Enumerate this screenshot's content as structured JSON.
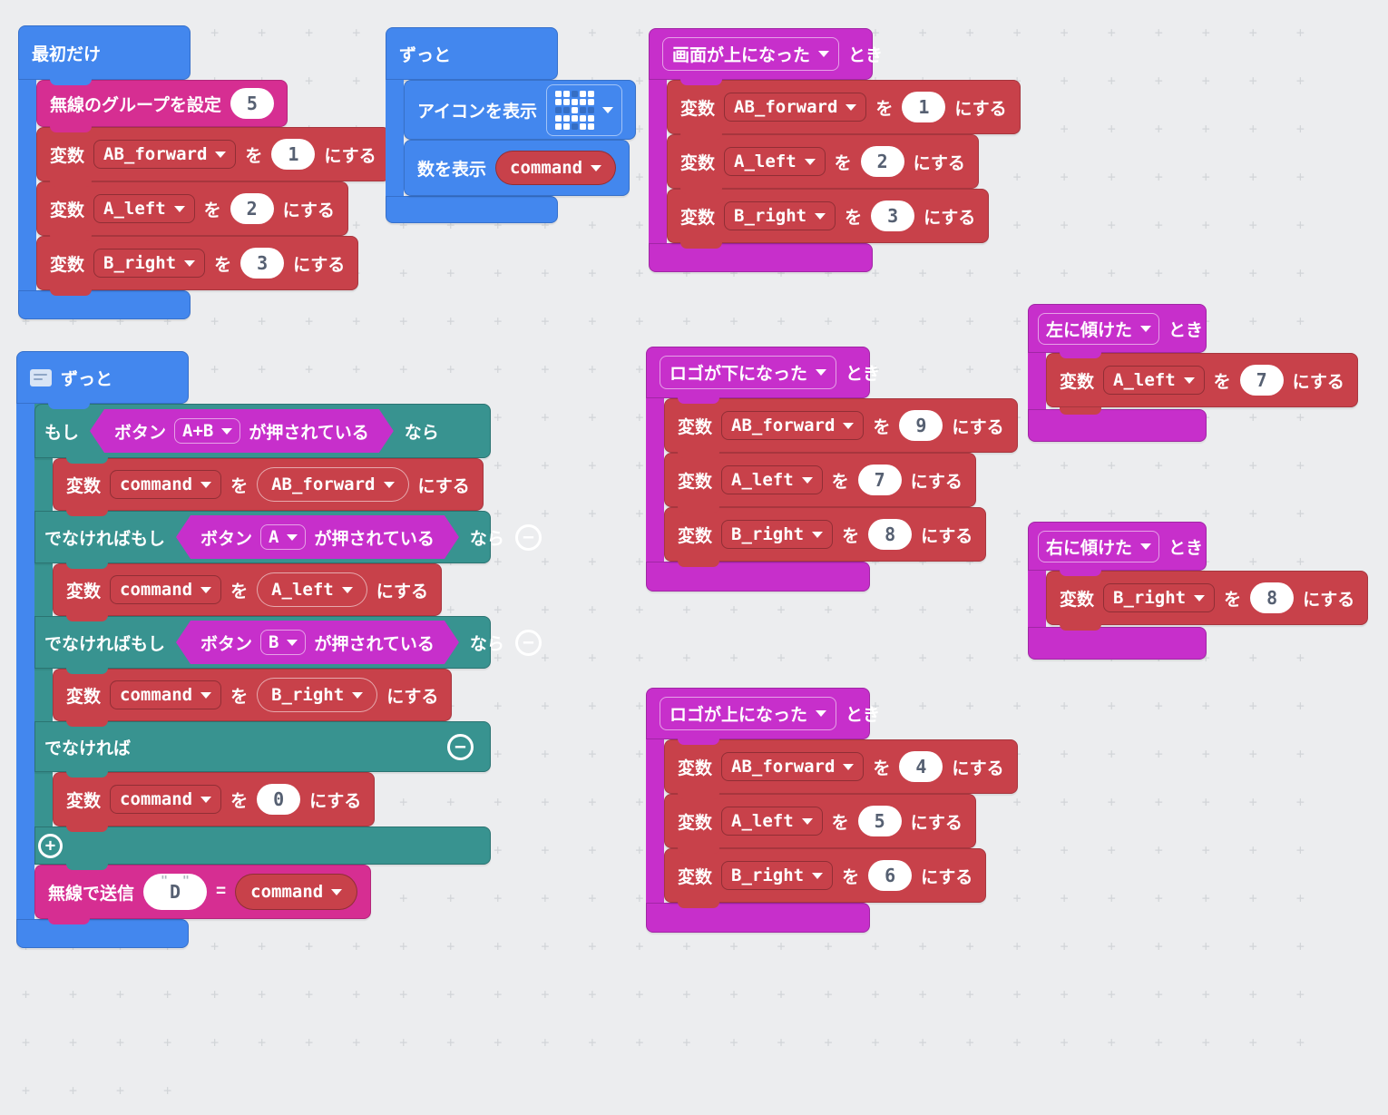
{
  "colors": {
    "background": "#ECEDEF",
    "basic_blue": "#4387EE",
    "input_magenta": "#C72FCB",
    "radio_pink": "#D62E92",
    "logic_teal": "#389390",
    "variables_red": "#C8414A",
    "number_text": "#566072"
  },
  "icons": {
    "minus": "−",
    "plus": "+",
    "dropdown_caret": "css-triangle-down",
    "comment": "css-comment-bubble"
  },
  "labels": {
    "on_start": "最初だけ",
    "forever": "ずっと",
    "variable": "変数",
    "particle_wo": "を",
    "set_suffix": "にする",
    "when_suffix": "とき",
    "if": "もし",
    "then": "なら",
    "else_if": "でなければもし",
    "else": "でなければ",
    "button": "ボタン",
    "is_pressed": "が押されている",
    "radio_set_group": "無線のグループを設定",
    "radio_send": "無線で送信",
    "show_icon": "アイコンを表示",
    "show_number": "数を表示",
    "equals": "="
  },
  "on_start": {
    "radio_group_value": "5",
    "sets": [
      {
        "var": "AB_forward",
        "value": "1"
      },
      {
        "var": "A_left",
        "value": "2"
      },
      {
        "var": "B_right",
        "value": "3"
      }
    ]
  },
  "forever_display": {
    "icon_pattern": [
      "##.##",
      "#####",
      "..#..",
      "#####",
      "##.##"
    ],
    "number_value": "command"
  },
  "events": {
    "screen_up": {
      "name": "画面が上になった",
      "sets": [
        {
          "var": "AB_forward",
          "value": "1"
        },
        {
          "var": "A_left",
          "value": "2"
        },
        {
          "var": "B_right",
          "value": "3"
        }
      ]
    },
    "logo_down": {
      "name": "ロゴが下になった",
      "sets": [
        {
          "var": "AB_forward",
          "value": "9"
        },
        {
          "var": "A_left",
          "value": "7"
        },
        {
          "var": "B_right",
          "value": "8"
        }
      ]
    },
    "logo_up": {
      "name": "ロゴが上になった",
      "sets": [
        {
          "var": "AB_forward",
          "value": "4"
        },
        {
          "var": "A_left",
          "value": "5"
        },
        {
          "var": "B_right",
          "value": "6"
        }
      ]
    },
    "tilt_left": {
      "name": "左に傾けた",
      "sets": [
        {
          "var": "A_left",
          "value": "7"
        }
      ]
    },
    "tilt_right": {
      "name": "右に傾けた",
      "sets": [
        {
          "var": "B_right",
          "value": "8"
        }
      ]
    }
  },
  "forever_logic": {
    "branches": [
      {
        "kw": "もし",
        "button": "A+B",
        "var": "command",
        "value": "AB_forward"
      },
      {
        "kw": "でなければもし",
        "button": "A",
        "var": "command",
        "value": "A_left"
      },
      {
        "kw": "でなければもし",
        "button": "B",
        "var": "command",
        "value": "B_right"
      }
    ],
    "else_assign": {
      "var": "command",
      "value": "0"
    },
    "radio_send": {
      "key": "D",
      "value": "command"
    }
  }
}
